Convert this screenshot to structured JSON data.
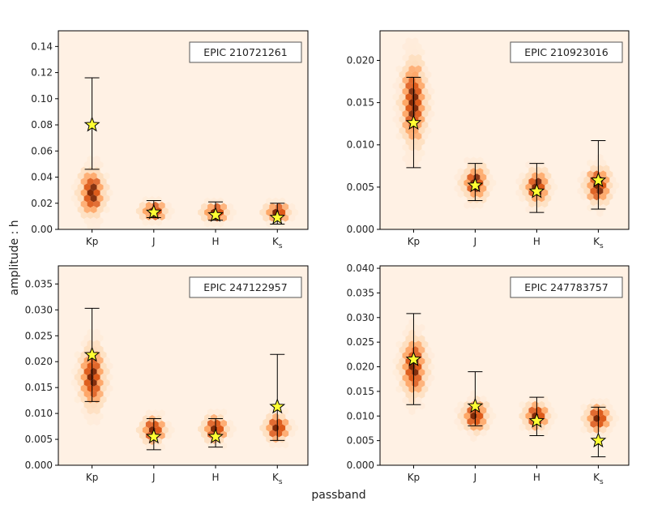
{
  "figure": {
    "xlabel": "passband",
    "ylabel": "amplitude : h",
    "colors": {
      "background": "#fff1e4",
      "hex_light": "#fdd0a2",
      "hex_mid": "#fd8d3c",
      "hex_dark": "#d94801",
      "hex_darkest": "#7f2704",
      "star": "#ffff33",
      "errorbar": "#000000"
    }
  },
  "chart_data": [
    {
      "type": "scatter",
      "title": "EPIC 210721261",
      "categories": [
        "Kp",
        "J",
        "H",
        "Ks"
      ],
      "ylim": [
        0,
        0.152
      ],
      "yticks": [
        0.0,
        0.02,
        0.04,
        0.06,
        0.08,
        0.1,
        0.12,
        0.14
      ],
      "ytick_labels": [
        "0.00",
        "0.02",
        "0.04",
        "0.06",
        "0.08",
        "0.10",
        "0.12",
        "0.14"
      ],
      "star_values": [
        0.08,
        0.013,
        0.011,
        0.009
      ],
      "err_low": [
        0.046,
        0.009,
        0.007,
        0.004
      ],
      "err_high": [
        0.116,
        0.022,
        0.021,
        0.02
      ],
      "density_center": [
        0.028,
        0.014,
        0.013,
        0.013
      ],
      "density_spread": [
        0.018,
        0.007,
        0.007,
        0.007
      ]
    },
    {
      "type": "scatter",
      "title": "EPIC 210923016",
      "categories": [
        "Kp",
        "J",
        "H",
        "Ks"
      ],
      "ylim": [
        0,
        0.0235
      ],
      "yticks": [
        0.0,
        0.005,
        0.01,
        0.015,
        0.02
      ],
      "ytick_labels": [
        "0.000",
        "0.005",
        "0.010",
        "0.015",
        "0.020"
      ],
      "star_values": [
        0.0126,
        0.0052,
        0.0045,
        0.0058
      ],
      "err_low": [
        0.0073,
        0.0034,
        0.002,
        0.0024
      ],
      "err_high": [
        0.018,
        0.0078,
        0.0078,
        0.0105
      ],
      "density_center": [
        0.015,
        0.0055,
        0.005,
        0.0052
      ],
      "density_spread": [
        0.005,
        0.002,
        0.002,
        0.0022
      ]
    },
    {
      "type": "scatter",
      "title": "EPIC 247122957",
      "categories": [
        "Kp",
        "J",
        "H",
        "Ks"
      ],
      "ylim": [
        0,
        0.0385
      ],
      "yticks": [
        0.0,
        0.005,
        0.01,
        0.015,
        0.02,
        0.025,
        0.03,
        0.035
      ],
      "ytick_labels": [
        "0.000",
        "0.005",
        "0.010",
        "0.015",
        "0.020",
        "0.025",
        "0.030",
        "0.035"
      ],
      "star_values": [
        0.0213,
        0.0055,
        0.0055,
        0.0113
      ],
      "err_low": [
        0.0123,
        0.003,
        0.0035,
        0.0048
      ],
      "err_high": [
        0.0303,
        0.009,
        0.009,
        0.0214
      ],
      "density_center": [
        0.017,
        0.0068,
        0.007,
        0.0072
      ],
      "density_spread": [
        0.006,
        0.0025,
        0.0025,
        0.0025
      ]
    },
    {
      "type": "scatter",
      "title": "EPIC 247783757",
      "categories": [
        "Kp",
        "J",
        "H",
        "Ks"
      ],
      "ylim": [
        0,
        0.0405
      ],
      "yticks": [
        0.0,
        0.005,
        0.01,
        0.015,
        0.02,
        0.025,
        0.03,
        0.035,
        0.04
      ],
      "ytick_labels": [
        "0.000",
        "0.005",
        "0.010",
        "0.015",
        "0.020",
        "0.025",
        "0.030",
        "0.035",
        "0.040"
      ],
      "star_values": [
        0.0215,
        0.012,
        0.009,
        0.005
      ],
      "err_low": [
        0.0123,
        0.008,
        0.006,
        0.0017
      ],
      "err_high": [
        0.0308,
        0.019,
        0.0138,
        0.0118
      ],
      "density_center": [
        0.02,
        0.01,
        0.01,
        0.0095
      ],
      "density_spread": [
        0.006,
        0.003,
        0.0028,
        0.0028
      ]
    }
  ]
}
